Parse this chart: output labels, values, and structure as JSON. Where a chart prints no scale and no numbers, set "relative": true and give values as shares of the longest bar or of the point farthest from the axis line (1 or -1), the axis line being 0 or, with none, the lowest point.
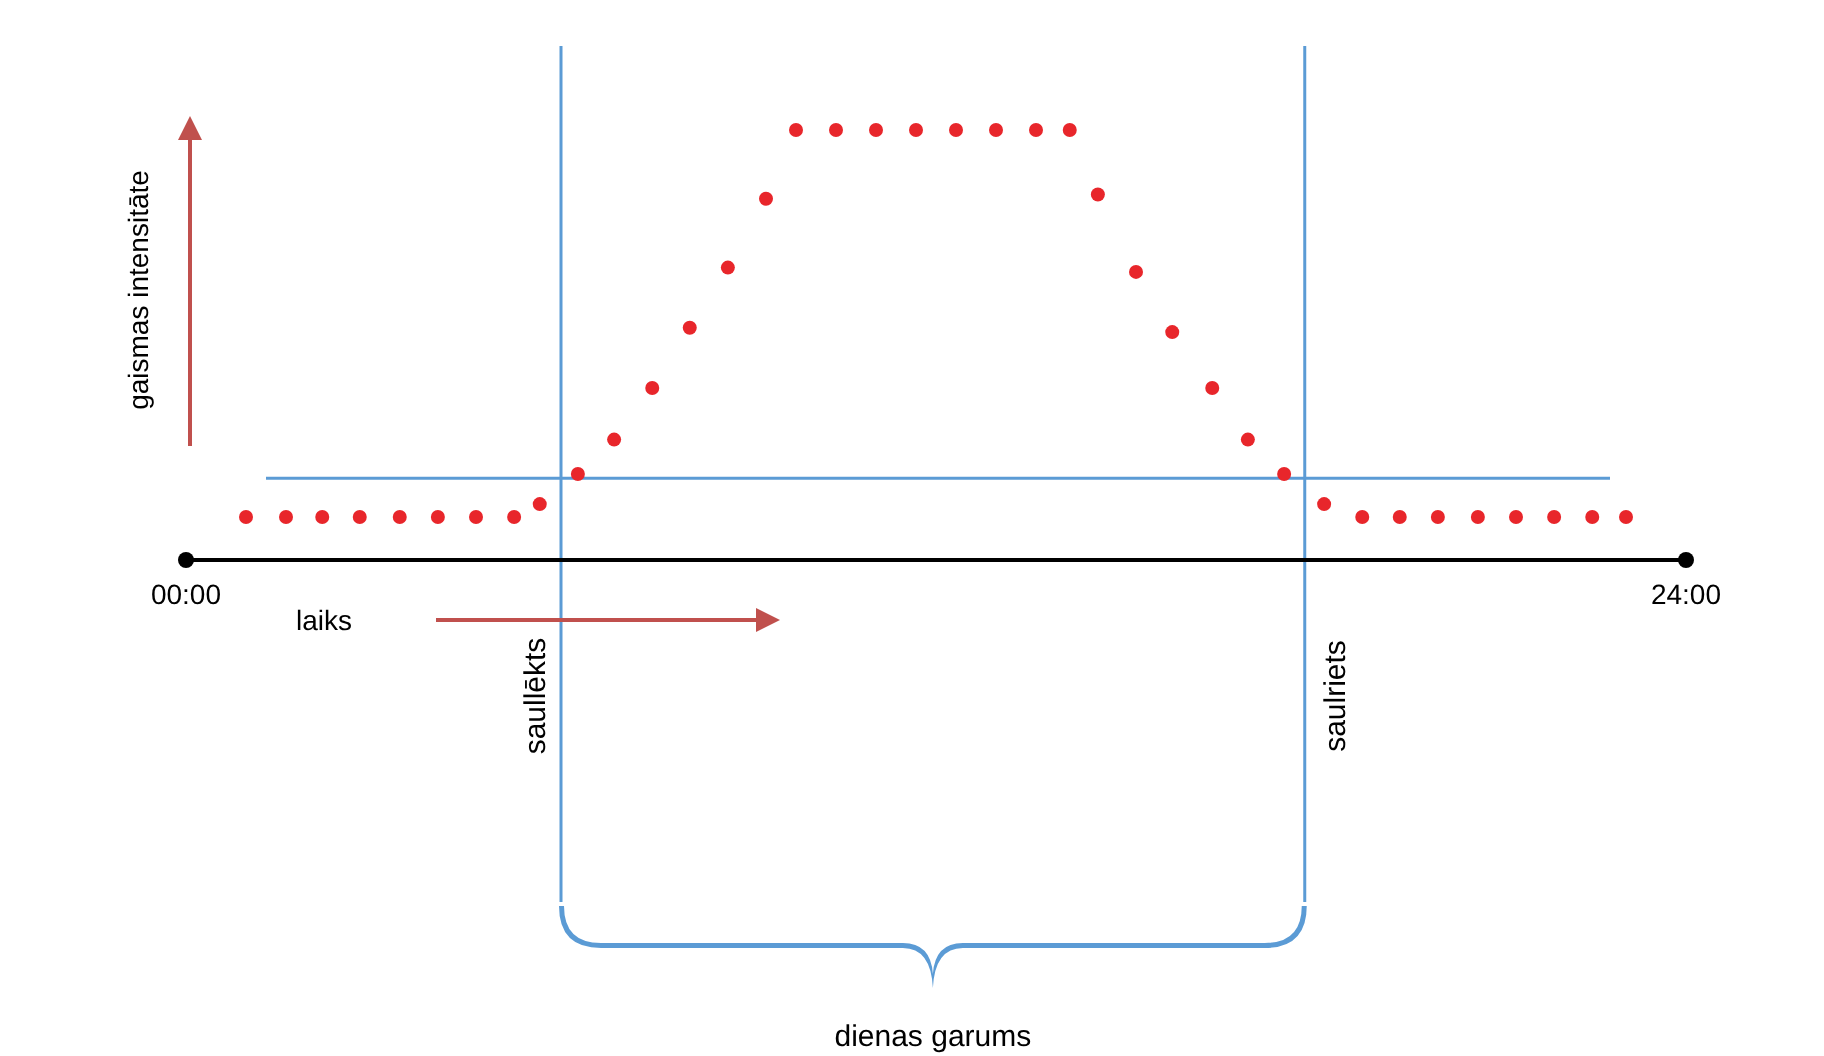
{
  "chart_data": {
    "type": "scatter",
    "relative": true,
    "xlabel": "laiks",
    "ylabel": "gaismas intensitāte",
    "xlim": [
      0,
      24
    ],
    "xticks": [
      {
        "value": 0,
        "label": "00:00"
      },
      {
        "value": 24,
        "label": "24:00"
      }
    ],
    "marker": "circle",
    "series": [
      {
        "color": "#e8262b",
        "x": [
          0.96,
          1.6,
          2.18,
          2.78,
          3.42,
          4.03,
          4.64,
          5.25,
          5.66,
          6.27,
          6.85,
          7.46,
          8.06,
          8.67,
          9.28,
          9.76,
          10.4,
          11.04,
          11.68,
          12.32,
          12.96,
          13.6,
          14.14,
          14.59,
          15.2,
          15.78,
          16.42,
          16.99,
          17.57,
          18.21,
          18.82,
          19.42,
          20.03,
          20.67,
          21.28,
          21.89,
          22.5,
          23.04
        ],
        "values": [
          0.1,
          0.1,
          0.1,
          0.1,
          0.1,
          0.1,
          0.1,
          0.1,
          0.13,
          0.2,
          0.28,
          0.4,
          0.54,
          0.68,
          0.84,
          1,
          1,
          1,
          1,
          1,
          1,
          1,
          1,
          0.85,
          0.67,
          0.53,
          0.4,
          0.28,
          0.2,
          0.13,
          0.1,
          0.1,
          0.1,
          0.1,
          0.1,
          0.1,
          0.1,
          0.1
        ]
      }
    ],
    "ref_lines": [
      {
        "axis": "x",
        "value": 6.0,
        "label": "saullēkts",
        "color": "#5b9bd5"
      },
      {
        "axis": "x",
        "value": 17.9,
        "label": "saulriets",
        "color": "#5b9bd5"
      },
      {
        "axis": "y",
        "value": 0.19,
        "color": "#5b9bd5"
      }
    ],
    "annotations": [
      "dienas garums"
    ]
  }
}
